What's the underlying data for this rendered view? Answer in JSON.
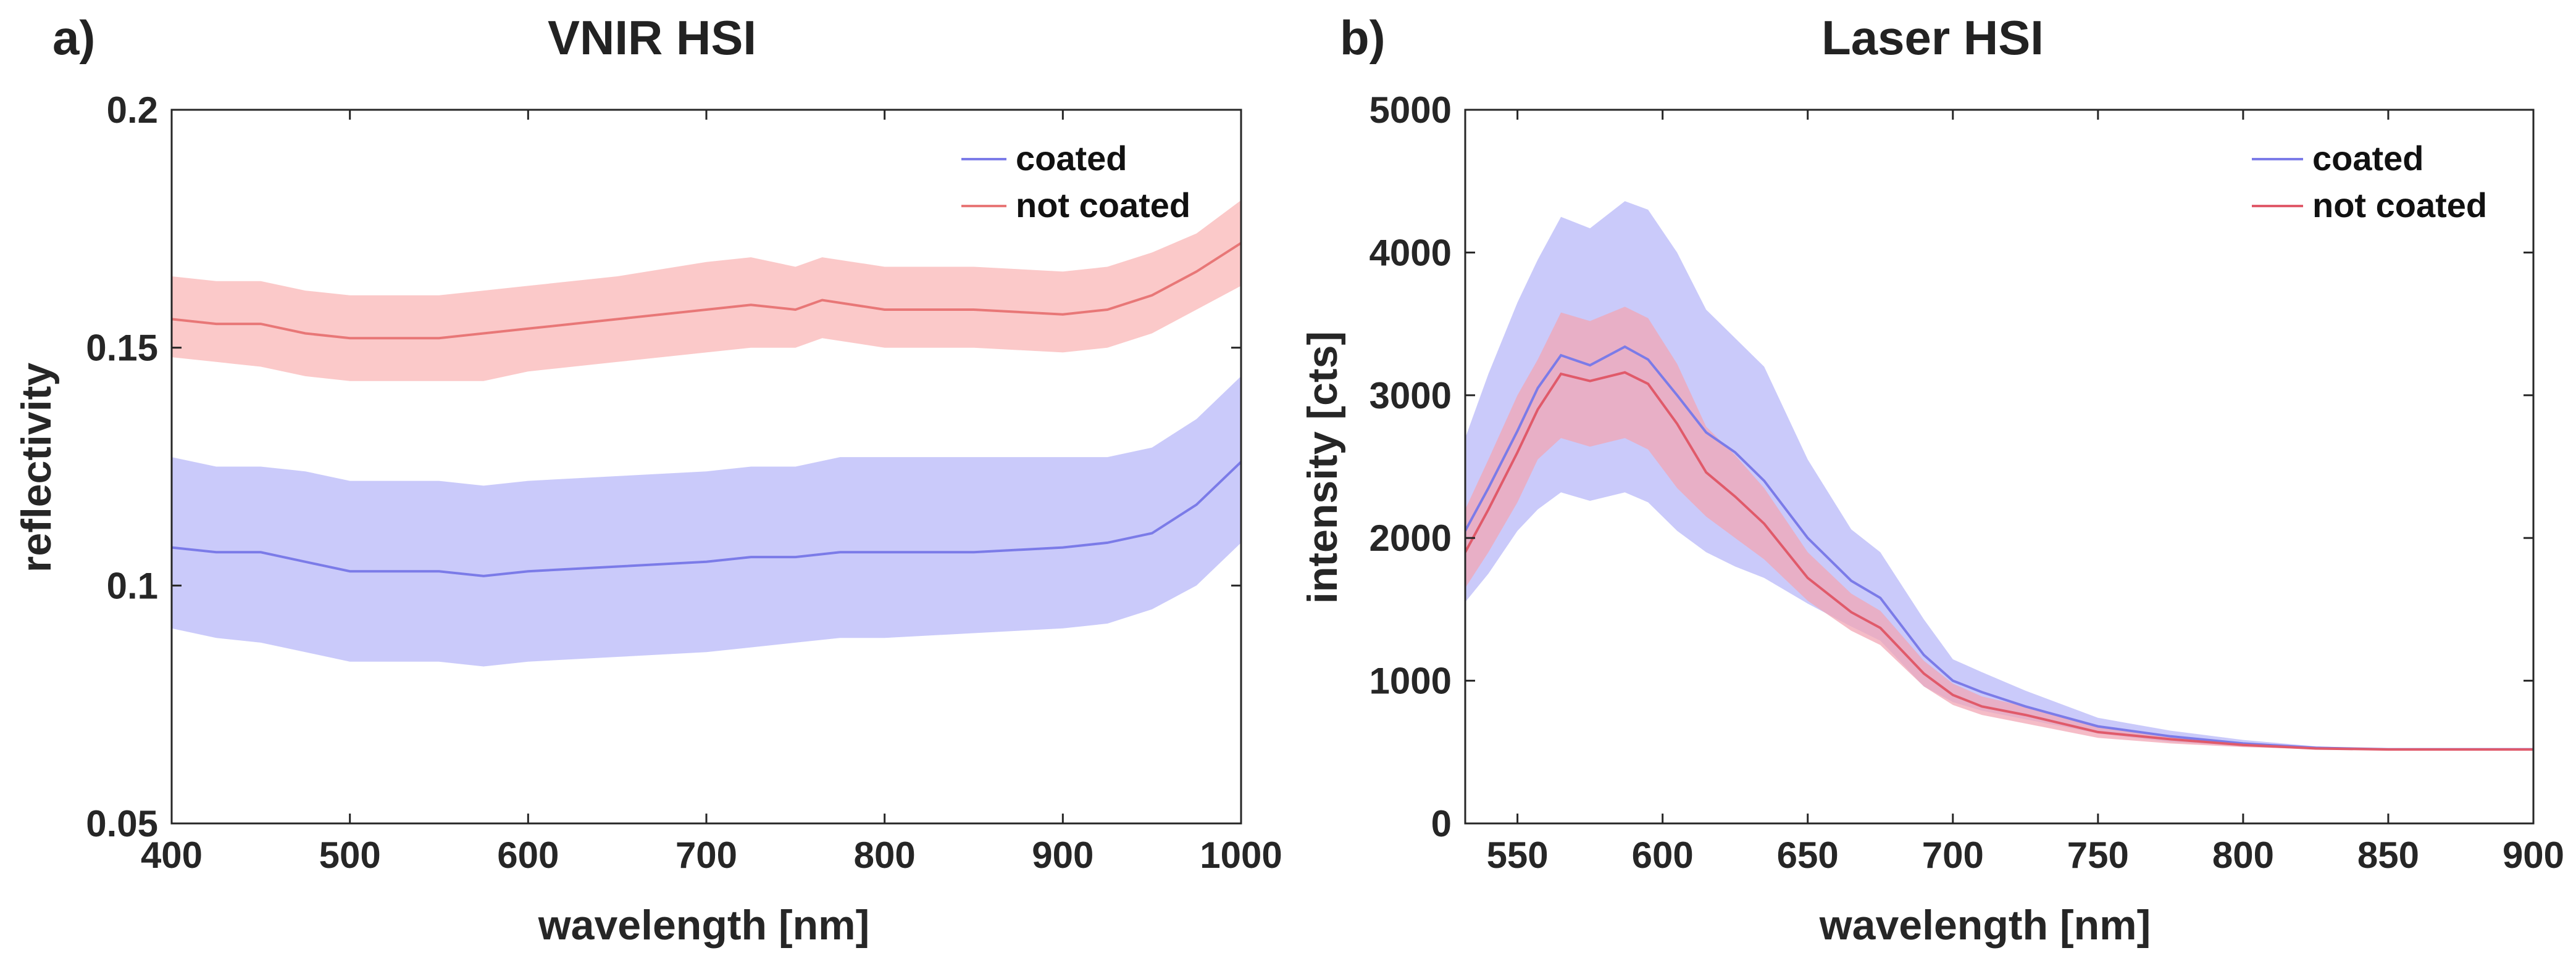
{
  "chart_data": [
    {
      "type": "line",
      "panel_label": "a)",
      "title": "VNIR HSI",
      "xlabel": "wavelength [nm]",
      "ylabel": "reflectivity",
      "xlim": [
        400,
        1000
      ],
      "ylim": [
        0.05,
        0.2
      ],
      "xticks": [
        400,
        500,
        600,
        700,
        800,
        900,
        1000
      ],
      "xtick_labels": [
        "400",
        "500",
        "600",
        "700",
        "800",
        "900",
        "1000"
      ],
      "yticks": [
        0.05,
        0.1,
        0.15,
        0.2
      ],
      "ytick_labels": [
        "0.05",
        "0.1",
        "0.15",
        "0.2"
      ],
      "grid": false,
      "legend": "top-right",
      "series": [
        {
          "name": "coated",
          "color": "#7b7be8",
          "band_color": "#c4c4fa",
          "x": [
            400,
            425,
            450,
            475,
            500,
            525,
            550,
            575,
            600,
            650,
            700,
            725,
            750,
            775,
            800,
            850,
            900,
            925,
            950,
            975,
            1000
          ],
          "values": [
            0.108,
            0.107,
            0.107,
            0.105,
            0.103,
            0.103,
            0.103,
            0.102,
            0.103,
            0.104,
            0.105,
            0.106,
            0.106,
            0.107,
            0.107,
            0.107,
            0.108,
            0.109,
            0.111,
            0.117,
            0.126
          ],
          "lower": [
            0.091,
            0.089,
            0.088,
            0.086,
            0.084,
            0.084,
            0.084,
            0.083,
            0.084,
            0.085,
            0.086,
            0.087,
            0.088,
            0.089,
            0.089,
            0.09,
            0.091,
            0.092,
            0.095,
            0.1,
            0.109
          ],
          "upper": [
            0.127,
            0.125,
            0.125,
            0.124,
            0.122,
            0.122,
            0.122,
            0.121,
            0.122,
            0.123,
            0.124,
            0.125,
            0.125,
            0.127,
            0.127,
            0.127,
            0.127,
            0.127,
            0.129,
            0.135,
            0.144
          ]
        },
        {
          "name": "not coated",
          "color": "#e87777",
          "band_color": "#fbc3c3",
          "x": [
            400,
            425,
            450,
            475,
            500,
            525,
            550,
            575,
            600,
            650,
            700,
            725,
            750,
            765,
            800,
            850,
            900,
            925,
            950,
            975,
            1000
          ],
          "values": [
            0.156,
            0.155,
            0.155,
            0.153,
            0.152,
            0.152,
            0.152,
            0.153,
            0.154,
            0.156,
            0.158,
            0.159,
            0.158,
            0.16,
            0.158,
            0.158,
            0.157,
            0.158,
            0.161,
            0.166,
            0.172
          ],
          "lower": [
            0.148,
            0.147,
            0.146,
            0.144,
            0.143,
            0.143,
            0.143,
            0.143,
            0.145,
            0.147,
            0.149,
            0.15,
            0.15,
            0.152,
            0.15,
            0.15,
            0.149,
            0.15,
            0.153,
            0.158,
            0.163
          ],
          "upper": [
            0.165,
            0.164,
            0.164,
            0.162,
            0.161,
            0.161,
            0.161,
            0.162,
            0.163,
            0.165,
            0.168,
            0.169,
            0.167,
            0.169,
            0.167,
            0.167,
            0.166,
            0.167,
            0.17,
            0.174,
            0.181
          ]
        }
      ]
    },
    {
      "type": "line",
      "panel_label": "b)",
      "title": "Laser HSI",
      "xlabel": "wavelength [nm]",
      "ylabel": "intensity [cts]",
      "xlim": [
        532,
        900
      ],
      "ylim": [
        0,
        5000
      ],
      "xticks": [
        550,
        600,
        650,
        700,
        750,
        800,
        850,
        900
      ],
      "xtick_labels": [
        "550",
        "600",
        "650",
        "700",
        "750",
        "800",
        "850",
        "900"
      ],
      "yticks": [
        0,
        1000,
        2000,
        3000,
        4000,
        5000
      ],
      "ytick_labels": [
        "0",
        "1000",
        "2000",
        "3000",
        "4000",
        "5000"
      ],
      "grid": false,
      "legend": "top-right",
      "series": [
        {
          "name": "coated",
          "color": "#7b7be8",
          "band_color": "#c4c4fa",
          "x": [
            532,
            540,
            550,
            557,
            565,
            575,
            587,
            595,
            605,
            615,
            625,
            635,
            650,
            665,
            675,
            690,
            700,
            710,
            725,
            750,
            775,
            800,
            825,
            850,
            875,
            900
          ],
          "values": [
            2050,
            2350,
            2750,
            3050,
            3280,
            3210,
            3340,
            3250,
            3000,
            2740,
            2600,
            2400,
            2000,
            1700,
            1580,
            1180,
            1000,
            920,
            820,
            680,
            610,
            560,
            530,
            520,
            520,
            520
          ],
          "lower": [
            1550,
            1750,
            2050,
            2200,
            2320,
            2260,
            2320,
            2250,
            2050,
            1900,
            1800,
            1720,
            1540,
            1380,
            1280,
            960,
            850,
            790,
            730,
            630,
            570,
            540,
            525,
            518,
            518,
            518
          ],
          "upper": [
            2700,
            3150,
            3650,
            3950,
            4250,
            4170,
            4360,
            4300,
            4000,
            3600,
            3400,
            3200,
            2550,
            2060,
            1900,
            1430,
            1150,
            1060,
            930,
            740,
            650,
            585,
            540,
            522,
            522,
            522
          ]
        },
        {
          "name": "not coated",
          "color": "#e05a6a",
          "band_color": "#f2a6b4",
          "x": [
            532,
            540,
            550,
            557,
            565,
            575,
            587,
            595,
            605,
            615,
            625,
            635,
            650,
            665,
            675,
            690,
            700,
            710,
            725,
            750,
            775,
            800,
            825,
            850,
            875,
            900
          ],
          "values": [
            1900,
            2200,
            2600,
            2900,
            3150,
            3100,
            3160,
            3080,
            2800,
            2460,
            2290,
            2100,
            1720,
            1480,
            1370,
            1050,
            900,
            820,
            760,
            640,
            590,
            550,
            525,
            518,
            518,
            518
          ],
          "lower": [
            1650,
            1900,
            2250,
            2550,
            2700,
            2640,
            2700,
            2620,
            2350,
            2150,
            2000,
            1850,
            1560,
            1350,
            1250,
            960,
            830,
            760,
            700,
            600,
            560,
            535,
            520,
            515,
            515,
            515
          ],
          "upper": [
            2200,
            2550,
            3000,
            3250,
            3580,
            3520,
            3620,
            3540,
            3220,
            2780,
            2580,
            2350,
            1900,
            1610,
            1490,
            1140,
            980,
            890,
            820,
            680,
            615,
            565,
            530,
            521,
            521,
            521
          ]
        }
      ]
    }
  ]
}
